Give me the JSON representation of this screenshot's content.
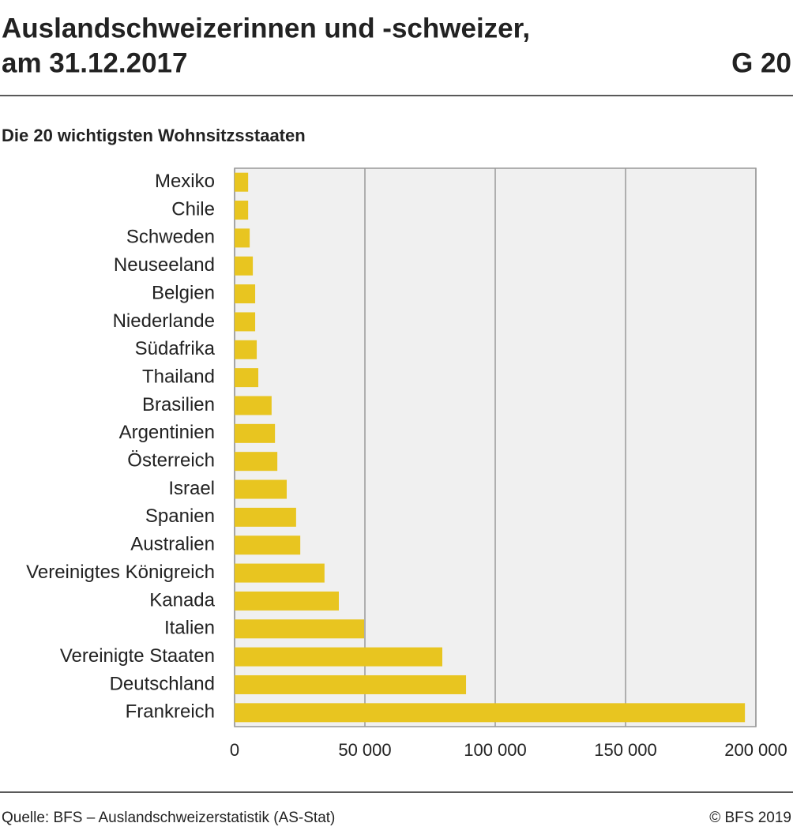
{
  "chart_data": {
    "type": "hbar",
    "title": [
      "Auslandschweizerinnen und -schweizer,",
      "am 31.12.2017"
    ],
    "figure_number": "G 20",
    "subtitle": "Die 20 wichtigsten Wohnsitzsstaaten",
    "categories": [
      "Mexiko",
      "Chile",
      "Schweden",
      "Neuseeland",
      "Belgien",
      "Niederlande",
      "Südafrika",
      "Thailand",
      "Brasilien",
      "Argentinien",
      "Österreich",
      "Israel",
      "Spanien",
      "Australien",
      "Vereinigtes Königreich",
      "Kanada",
      "Italien",
      "Vereinigte Staaten",
      "Deutschland",
      "Frankreich"
    ],
    "values": [
      5200,
      5200,
      5800,
      7000,
      7900,
      7900,
      8500,
      9100,
      14200,
      15500,
      16400,
      20000,
      23600,
      25200,
      34500,
      40000,
      49700,
      79700,
      88800,
      195800
    ],
    "color": "#e8c520",
    "xlim": [
      0,
      200000
    ],
    "xticks": [
      0,
      {
        "value": 50000,
        "label": "50 000"
      },
      {
        "value": 100000,
        "label": "100 000"
      },
      {
        "value": 150000,
        "label": "150 000"
      },
      {
        "value": 200000,
        "label": "200 000"
      }
    ],
    "grid": true,
    "source": "Quelle: BFS – Auslandschweizerstatistik (AS-Stat)",
    "copyright": "© BFS 2019"
  }
}
